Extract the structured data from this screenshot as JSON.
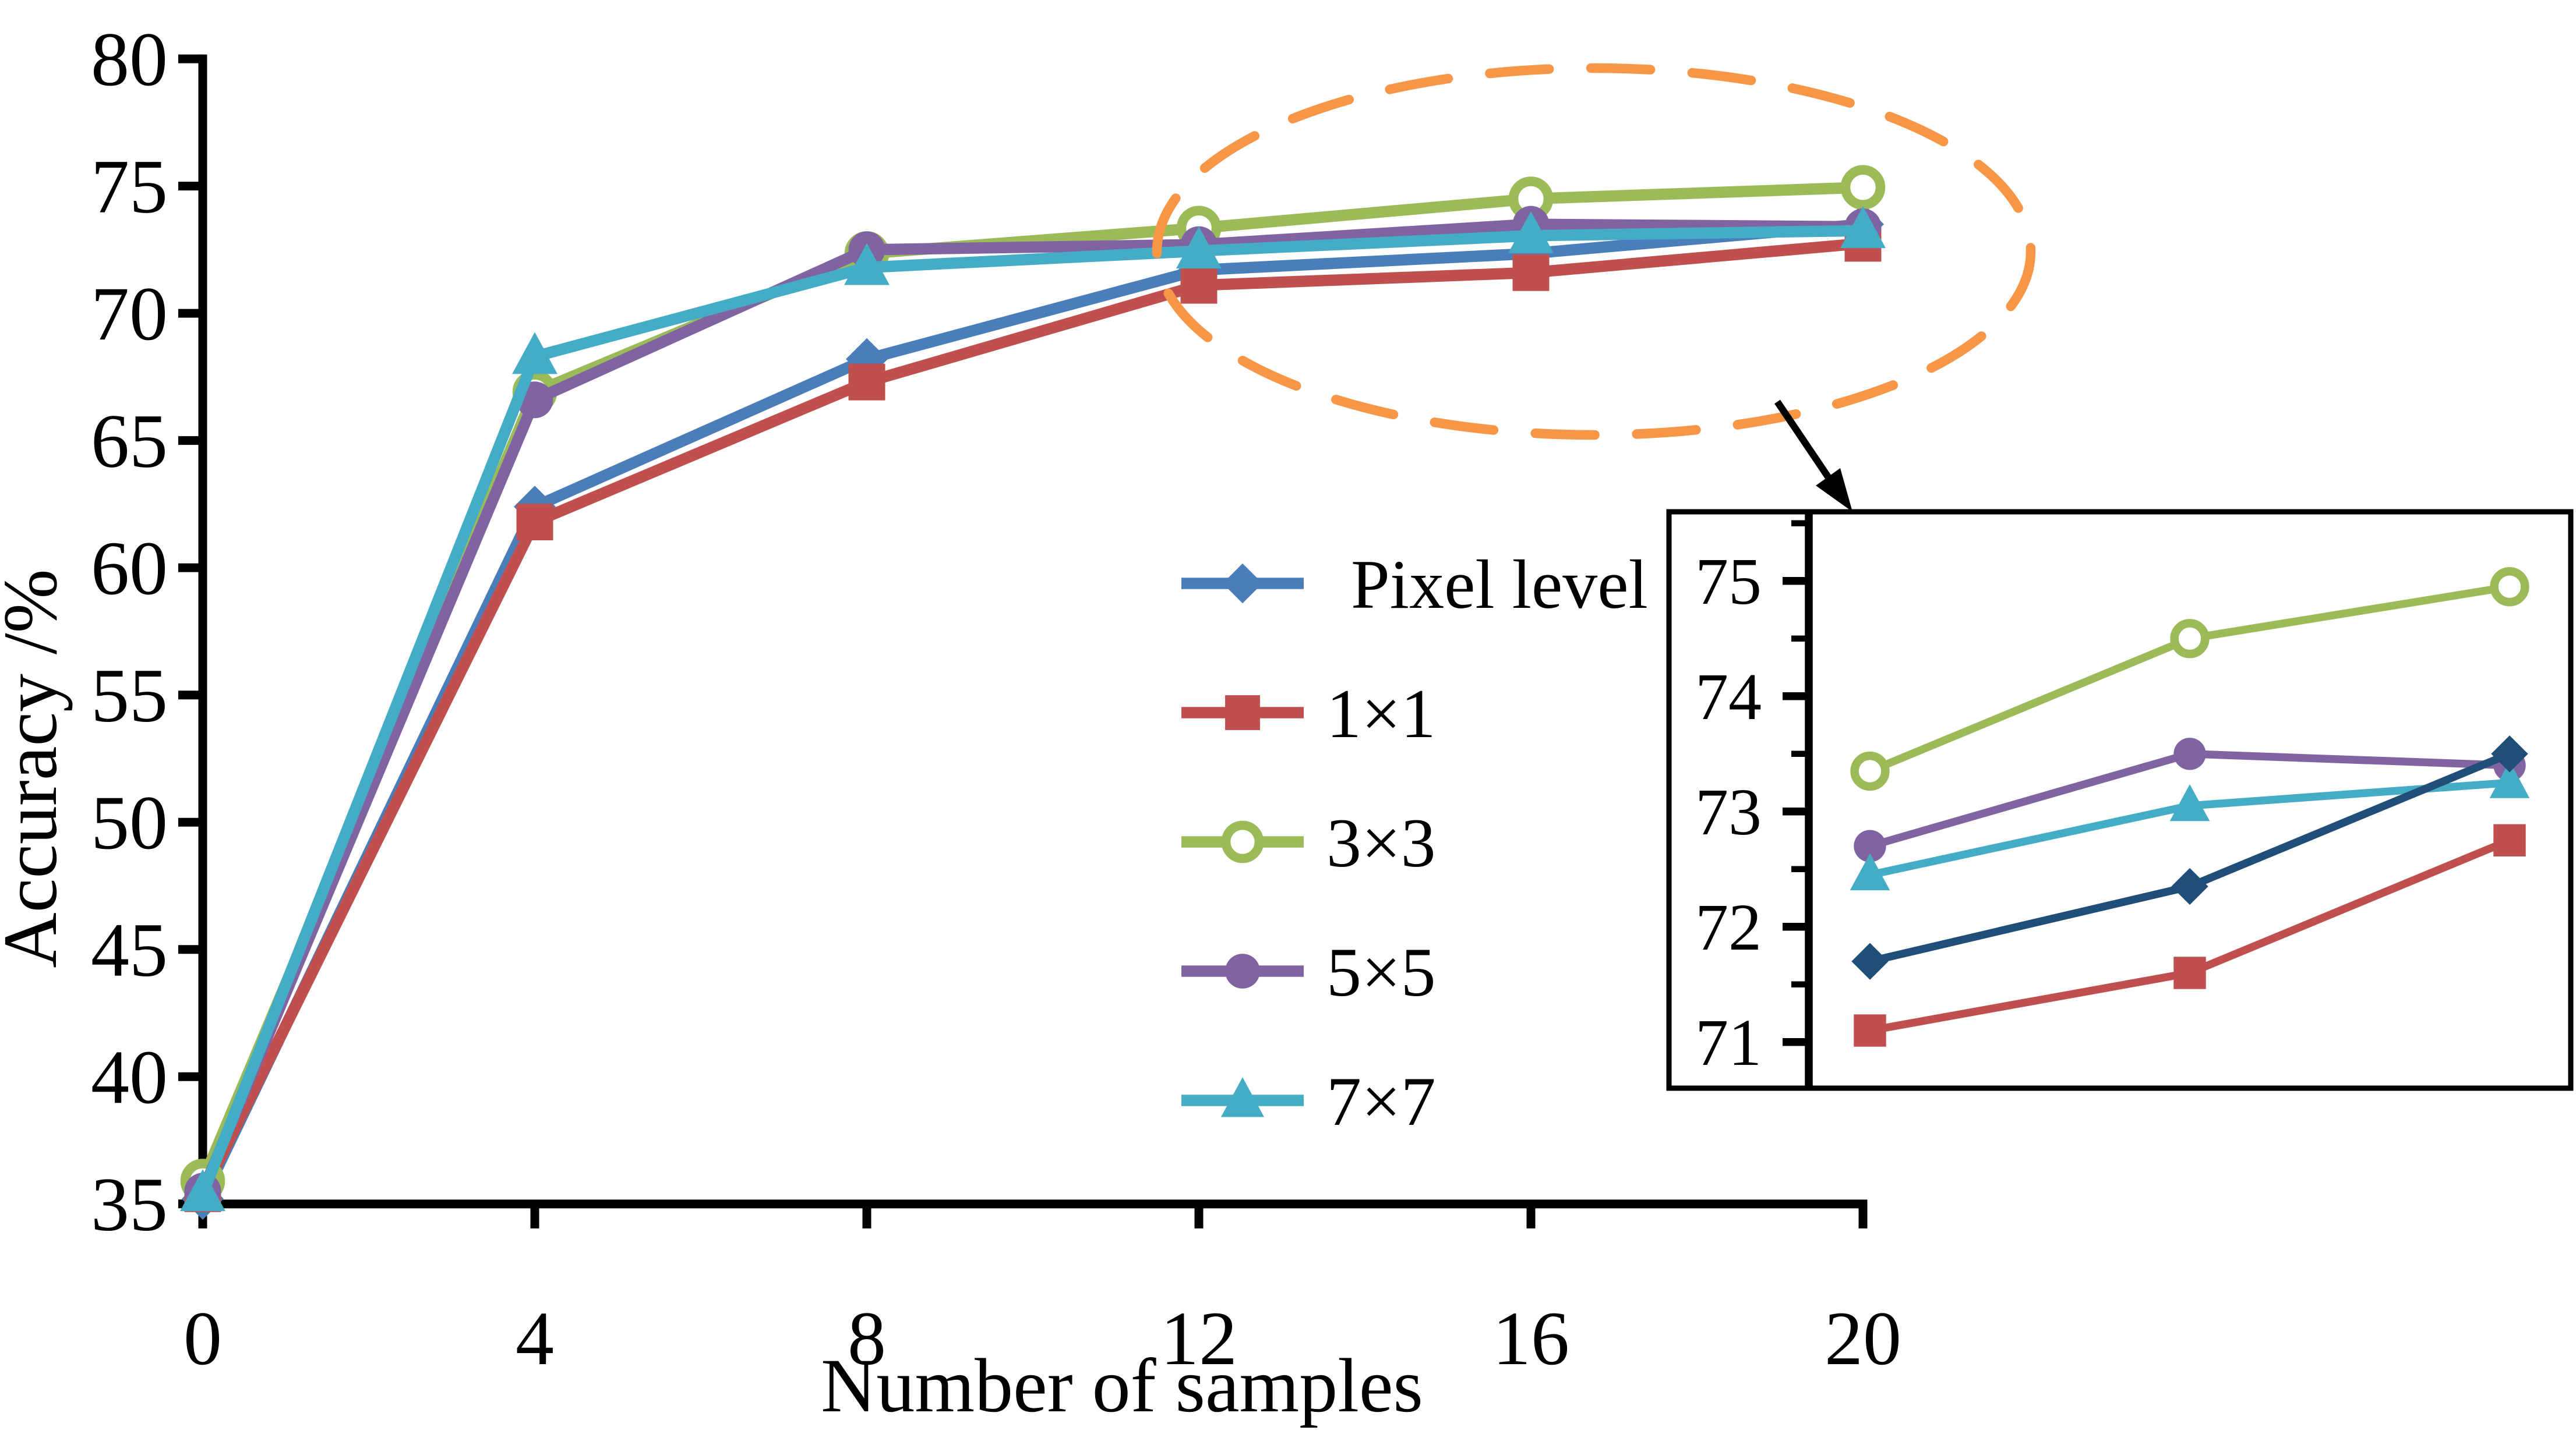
{
  "figure": {
    "background": "#ffffff"
  },
  "chart_data": {
    "type": "line",
    "title": "",
    "xlabel": "Number of samples",
    "ylabel": "Accuracy /%",
    "x": [
      0,
      4,
      8,
      12,
      16,
      20
    ],
    "xticks": [
      0,
      4,
      8,
      12,
      16,
      20
    ],
    "yticks": [
      35,
      40,
      45,
      50,
      55,
      60,
      65,
      70,
      75,
      80
    ],
    "xlim": [
      0,
      20
    ],
    "ylim": [
      35,
      80
    ],
    "grid": false,
    "legend_position": "center-right",
    "series": [
      {
        "name": "Pixel level",
        "marker": "diamond",
        "color": "#4A7EBB",
        "values": [
          35.2,
          62.4,
          68.2,
          71.7,
          72.35,
          73.5
        ]
      },
      {
        "name": "1×1",
        "marker": "square",
        "color": "#C0504D",
        "values": [
          35.4,
          61.8,
          67.3,
          71.1,
          71.6,
          72.75
        ]
      },
      {
        "name": "3×3",
        "marker": "circle-open",
        "color": "#9BBB59",
        "values": [
          35.9,
          66.9,
          72.35,
          73.35,
          74.5,
          74.95
        ]
      },
      {
        "name": "5×5",
        "marker": "circle",
        "color": "#8064A2",
        "values": [
          35.5,
          66.6,
          72.5,
          72.7,
          73.5,
          73.4
        ]
      },
      {
        "name": "7×7",
        "marker": "triangle",
        "color": "#45ACC5",
        "values": [
          35.4,
          68.3,
          71.8,
          72.45,
          73.05,
          73.25
        ]
      }
    ],
    "inset": {
      "position": "bottom-right",
      "x": [
        12,
        16,
        20
      ],
      "yticks": [
        71,
        72,
        73,
        74,
        75
      ],
      "ylim": [
        70.6,
        75.6
      ],
      "series": [
        {
          "name": "Pixel level",
          "marker": "diamond",
          "color": "#1F4E79",
          "values": [
            71.7,
            72.35,
            73.5
          ]
        },
        {
          "name": "1×1",
          "marker": "square",
          "color": "#C0504D",
          "values": [
            71.1,
            71.6,
            72.75
          ]
        },
        {
          "name": "3×3",
          "marker": "circle-open",
          "color": "#9BBB59",
          "values": [
            73.35,
            74.5,
            74.95
          ]
        },
        {
          "name": "5×5",
          "marker": "circle",
          "color": "#8064A2",
          "values": [
            72.7,
            73.5,
            73.4
          ]
        },
        {
          "name": "7×7",
          "marker": "triangle",
          "color": "#45ACC5",
          "values": [
            72.45,
            73.05,
            73.25
          ]
        }
      ]
    },
    "annotations": {
      "zoom_ellipse_color": "#F79646",
      "arrow_color": "#000000"
    }
  },
  "legend": {
    "items": [
      "Pixel level",
      "1×1",
      "3×3",
      "5×5",
      "7×7"
    ]
  }
}
